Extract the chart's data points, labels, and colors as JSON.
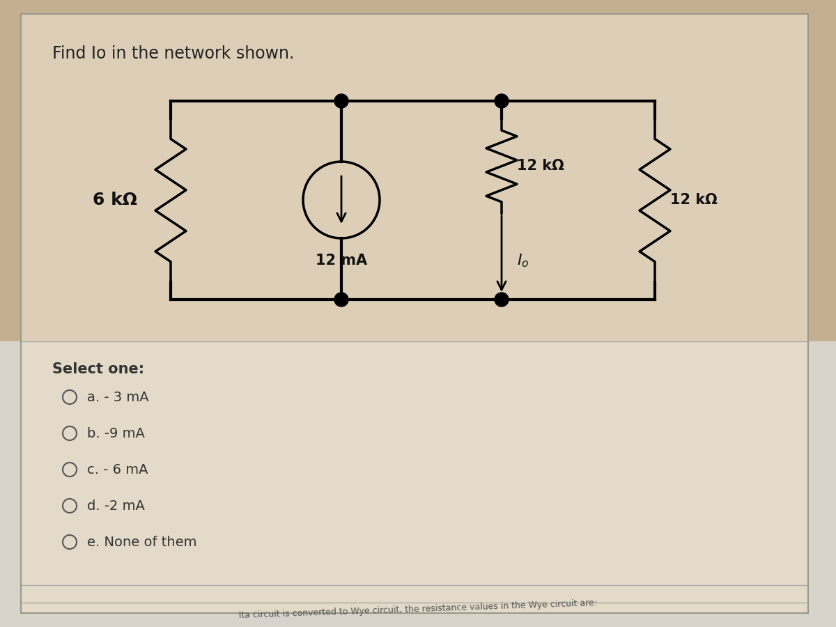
{
  "question_text": "Find Io in the network shown.",
  "bg_color_top": "#c8b080",
  "bg_color_bottom": "#d0ccc8",
  "panel_bg": "#e8ddc8",
  "choices_bg": "#d8d4d0",
  "R1_label": "6 kΩ",
  "R2_label": "12 kΩ",
  "R3_label": "12 kΩ",
  "source_label": "12 mA",
  "Io_label": "$I_o$",
  "choices": [
    "a. - 3 mA",
    "b. -9 mA",
    "c. - 6 mA",
    "d. -2 mA",
    "e. None of them"
  ],
  "footer_text": "Ita circuit is converted to Wye circuit, the resistance values in the Wye circuit are:"
}
